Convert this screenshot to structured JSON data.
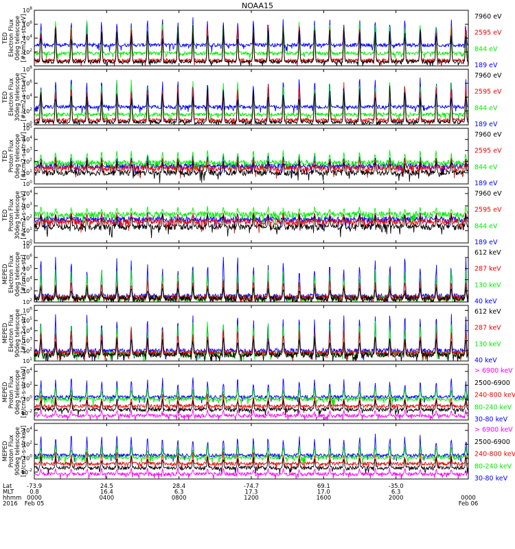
{
  "title": "NOAA15",
  "colors": {
    "black": "#000000",
    "red": "#ee0000",
    "green": "#00ee00",
    "blue": "#0000ff",
    "magenta": "#ff00ff"
  },
  "chart_data": [
    {
      "type": "line",
      "ylabel": [
        "TED",
        "Electron Flux",
        "0deg telescope",
        "[#/cm2-s-str-eV]"
      ],
      "yscale": "log",
      "yticks": [
        "10^2",
        "10^4",
        "10^6",
        "10^8"
      ],
      "ylim_exp": [
        0,
        8
      ],
      "series": [
        {
          "name": "7960 eV",
          "color": "#000000",
          "base": 0.6,
          "peak": 6.0
        },
        {
          "name": "2595 eV",
          "color": "#ee0000",
          "base": 0.8,
          "peak": 6.3
        },
        {
          "name": "844 eV",
          "color": "#00ee00",
          "base": 1.8,
          "peak": 6.8
        },
        {
          "name": "189 eV",
          "color": "#0000ff",
          "base": 3.0,
          "peak": 7.2
        }
      ]
    },
    {
      "type": "line",
      "ylabel": [
        "TED",
        "Electron Flux",
        "30deg telescope",
        "[#/cm2-s-str-eV]"
      ],
      "yscale": "log",
      "yticks": [
        "10^0",
        "10^2",
        "10^4",
        "10^6",
        "10^8"
      ],
      "ylim_exp": [
        0,
        8
      ],
      "series": [
        {
          "name": "7960 eV",
          "color": "#000000",
          "base": 0.4,
          "peak": 5.8
        },
        {
          "name": "2595 eV",
          "color": "#ee0000",
          "base": 0.7,
          "peak": 6.2
        },
        {
          "name": "844 eV",
          "color": "#00ee00",
          "base": 1.5,
          "peak": 6.6
        },
        {
          "name": "189 eV",
          "color": "#0000ff",
          "base": 2.6,
          "peak": 7.0
        }
      ]
    },
    {
      "type": "line",
      "ylabel": [
        "TED",
        "Proton Flux",
        "0deg telescope",
        "[#/cm2-s-str-eV]"
      ],
      "yscale": "log",
      "yticks": [
        "10^0",
        "10^1",
        "10^2",
        "10^3",
        "10^4",
        "10^5"
      ],
      "ylim_exp": [
        0,
        5
      ],
      "series": [
        {
          "name": "7960 eV",
          "color": "#000000",
          "base": 1.0,
          "peak": 2.2
        },
        {
          "name": "2595 eV",
          "color": "#ee0000",
          "base": 1.4,
          "peak": 2.4
        },
        {
          "name": "844 eV",
          "color": "#00ee00",
          "base": 1.9,
          "peak": 3.1
        },
        {
          "name": "189 eV",
          "color": "#0000ff",
          "base": 1.6,
          "peak": 2.6
        }
      ]
    },
    {
      "type": "line",
      "ylabel": [
        "TED",
        "Proton Flux",
        "30deg telescope",
        "[#/cm2-s-str-eV]"
      ],
      "yscale": "log",
      "yticks": [
        "10^0",
        "10^1",
        "10^2",
        "10^3",
        "10^4"
      ],
      "ylim_exp": [
        0,
        4.5
      ],
      "series": [
        {
          "name": "7960 eV",
          "color": "#000000",
          "base": 1.3,
          "peak": 2.4
        },
        {
          "name": "2595 eV",
          "color": "#ee0000",
          "base": 1.7,
          "peak": 2.6
        },
        {
          "name": "844 eV",
          "color": "#00ee00",
          "base": 2.3,
          "peak": 3.0
        },
        {
          "name": "189 eV",
          "color": "#0000ff",
          "base": 1.9,
          "peak": 2.5
        }
      ]
    },
    {
      "type": "line",
      "ylabel": [
        "MEPED",
        "Electron Flux",
        "0deg telescope",
        "[#/cm2-s-str]"
      ],
      "yscale": "log",
      "yticks": [
        "10^2",
        "10^3",
        "10^4",
        "10^5",
        "10^6",
        "10^7"
      ],
      "ylim_exp": [
        2,
        7
      ],
      "series": [
        {
          "name": "612 keV",
          "color": "#000000",
          "base": 2.3,
          "peak": 3.5
        },
        {
          "name": "287 keV",
          "color": "#ee0000",
          "base": 2.4,
          "peak": 4.0
        },
        {
          "name": "130 keV",
          "color": "#00ee00",
          "base": 2.3,
          "peak": 5.0
        },
        {
          "name": "40 keV",
          "color": "#0000ff",
          "base": 2.5,
          "peak": 6.2
        }
      ]
    },
    {
      "type": "line",
      "ylabel": [
        "MEPED",
        "Electron Flux",
        "90deg telescope",
        "[#/cm2-s-str]"
      ],
      "yscale": "log",
      "yticks": [
        "10^1",
        "10^2",
        "10^3",
        "10^4",
        "10^5",
        "10^6"
      ],
      "ylim_exp": [
        1,
        6.5
      ],
      "series": [
        {
          "name": "612 keV",
          "color": "#000000",
          "base": 1.6,
          "peak": 3.5
        },
        {
          "name": "287 keV",
          "color": "#ee0000",
          "base": 1.8,
          "peak": 4.3
        },
        {
          "name": "130 keV",
          "color": "#00ee00",
          "base": 1.7,
          "peak": 5.0
        },
        {
          "name": "40 keV",
          "color": "#0000ff",
          "base": 2.0,
          "peak": 5.8
        }
      ]
    },
    {
      "type": "line",
      "ylabel": [
        "MEPED",
        "Proton Flux",
        "0deg telescope",
        "[#/cm2-s-str-keV]"
      ],
      "yscale": "log",
      "yticks": [
        "10^-2",
        "10^0",
        "10^2",
        "10^4"
      ],
      "ylim_exp": [
        -3,
        5
      ],
      "series": [
        {
          "name": "> 6900 keV",
          "color": "#ff00ff",
          "base": -2.4,
          "peak": -1.4
        },
        {
          "name": "2500-6900",
          "color": "#000000",
          "base": -1.5,
          "peak": 0.3
        },
        {
          "name": "240-800 keV",
          "color": "#ee0000",
          "base": -1.0,
          "peak": 0.8
        },
        {
          "name": "80-240 keV",
          "color": "#00ee00",
          "base": 0.0,
          "peak": 1.8
        },
        {
          "name": "30-80 keV",
          "color": "#0000ff",
          "base": 0.3,
          "peak": 3.2
        }
      ]
    },
    {
      "type": "line",
      "ylabel": [
        "MEPED",
        "Proton Flux",
        "90deg telescope",
        "[#/cm2-s-str-keV]"
      ],
      "yscale": "log",
      "yticks": [
        "10^-2",
        "10^0",
        "10^2",
        "10^4"
      ],
      "ylim_exp": [
        -3,
        5
      ],
      "series": [
        {
          "name": "> 6900 keV",
          "color": "#ff00ff",
          "base": -2.3,
          "peak": -1.3
        },
        {
          "name": "2500-6900",
          "color": "#000000",
          "base": -1.4,
          "peak": 0.4
        },
        {
          "name": "240-800 keV",
          "color": "#ee0000",
          "base": -0.8,
          "peak": 1.0
        },
        {
          "name": "80-240 keV",
          "color": "#00ee00",
          "base": 0.1,
          "peak": 2.0
        },
        {
          "name": "30-80 keV",
          "color": "#0000ff",
          "base": 0.4,
          "peak": 3.6
        }
      ]
    }
  ],
  "x_axis": {
    "row_labels": [
      "Lat",
      "MLT",
      "hhmm",
      "2016"
    ],
    "ticks": [
      {
        "hour": 0,
        "lat": "-73.9",
        "mlt": "0.8",
        "hhmm": "0000",
        "date": "Feb 05"
      },
      {
        "hour": 4,
        "lat": "24.5",
        "mlt": "16.4",
        "hhmm": "0400",
        "date": ""
      },
      {
        "hour": 8,
        "lat": "28.4",
        "mlt": "6.3",
        "hhmm": "0800",
        "date": ""
      },
      {
        "hour": 12,
        "lat": "-74.7",
        "mlt": "17.3",
        "hhmm": "1200",
        "date": ""
      },
      {
        "hour": 16,
        "lat": "69.1",
        "mlt": "17.0",
        "hhmm": "1600",
        "date": ""
      },
      {
        "hour": 20,
        "lat": "-35.0",
        "mlt": "6.3",
        "hhmm": "2000",
        "date": ""
      },
      {
        "hour": 24,
        "lat": "",
        "mlt": "",
        "hhmm": "0000",
        "date": "Feb 06"
      }
    ],
    "xlim_hours": [
      0,
      24
    ]
  }
}
